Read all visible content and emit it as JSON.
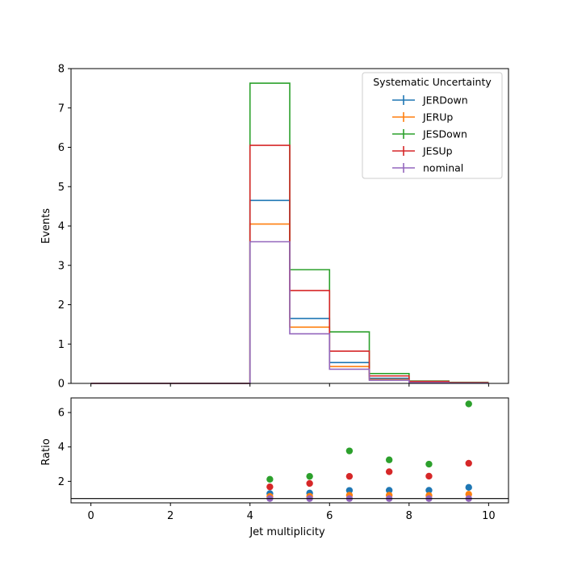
{
  "chart_data": [
    {
      "type": "line",
      "subtype": "step-histogram",
      "title": "",
      "xlabel": "",
      "ylabel": "Events",
      "xlim": [
        -0.5,
        10.5
      ],
      "ylim": [
        0,
        8
      ],
      "yticks": [
        0,
        1,
        2,
        3,
        4,
        5,
        6,
        7,
        8
      ],
      "xticks": [
        0,
        2,
        4,
        6,
        8,
        10
      ],
      "x_tick_labels_shown": false,
      "grid": false,
      "bin_edges": [
        0,
        1,
        2,
        3,
        4,
        5,
        6,
        7,
        8,
        9,
        10
      ],
      "legend": {
        "title": "Systematic Uncertainty",
        "placement": "top-right"
      },
      "series": [
        {
          "name": "JERDown",
          "color": "#1f77b4",
          "values": [
            0,
            0,
            0,
            0,
            4.65,
            1.65,
            0.53,
            0.13,
            0.04,
            0.025
          ]
        },
        {
          "name": "JERUp",
          "color": "#ff7f0e",
          "values": [
            0,
            0,
            0,
            0,
            4.05,
            1.43,
            0.43,
            0.1,
            0.03,
            0.018
          ]
        },
        {
          "name": "JESDown",
          "color": "#2ca02c",
          "values": [
            0,
            0,
            0,
            0,
            7.63,
            2.89,
            1.31,
            0.25,
            0.06,
            0.028
          ]
        },
        {
          "name": "JESUp",
          "color": "#d62728",
          "values": [
            0,
            0,
            0,
            0,
            6.05,
            2.36,
            0.82,
            0.19,
            0.05,
            0.02
          ]
        },
        {
          "name": "nominal",
          "color": "#9467bd",
          "values": [
            0,
            0,
            0,
            0,
            3.6,
            1.26,
            0.36,
            0.08,
            0.02,
            0.006
          ]
        }
      ]
    },
    {
      "type": "scatter",
      "title": "",
      "xlabel": "Jet multiplicity",
      "ylabel": "Ratio",
      "xlim": [
        -0.5,
        10.5
      ],
      "ylim": [
        0.75,
        6.85
      ],
      "yticks": [
        2,
        4,
        6
      ],
      "xticks": [
        0,
        2,
        4,
        6,
        8,
        10
      ],
      "grid": false,
      "reference_line": 1,
      "x": [
        4.5,
        5.5,
        6.5,
        7.5,
        8.5,
        9.5
      ],
      "series": [
        {
          "name": "JERDown",
          "color": "#1f77b4",
          "values": [
            1.29,
            1.32,
            1.47,
            1.48,
            1.48,
            1.65
          ]
        },
        {
          "name": "JERUp",
          "color": "#ff7f0e",
          "values": [
            1.12,
            1.13,
            1.19,
            1.19,
            1.18,
            1.25
          ]
        },
        {
          "name": "JESDown",
          "color": "#2ca02c",
          "values": [
            2.12,
            2.29,
            3.77,
            3.25,
            3.0,
            6.5
          ]
        },
        {
          "name": "JESUp",
          "color": "#d62728",
          "values": [
            1.68,
            1.88,
            2.29,
            2.56,
            2.3,
            3.05
          ]
        },
        {
          "name": "nominal",
          "color": "#9467bd",
          "values": [
            1.0,
            1.0,
            1.0,
            1.0,
            1.0,
            1.0
          ]
        }
      ]
    }
  ]
}
